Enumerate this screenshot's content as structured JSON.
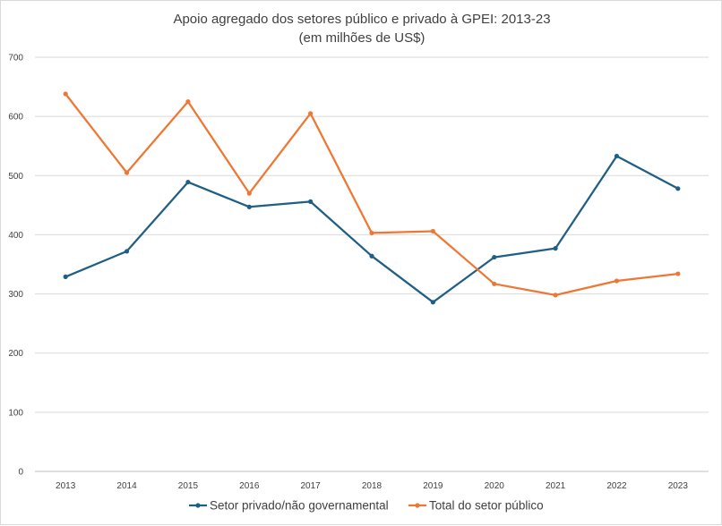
{
  "chart_data": {
    "type": "line",
    "title": "Apoio agregado dos setores público e privado à GPEI: 2013-23",
    "subtitle": "(em milhões de US$)",
    "categories": [
      "2013",
      "2014",
      "2015",
      "2016",
      "2017",
      "2018",
      "2019",
      "2020",
      "2021",
      "2022",
      "2023"
    ],
    "ylim": [
      0,
      700
    ],
    "yticks": [
      0,
      100,
      200,
      300,
      400,
      500,
      600,
      700
    ],
    "grid": true,
    "legend_position": "bottom",
    "series": [
      {
        "name": "Setor privado/não governamental",
        "color": "#1f5f86",
        "values": [
          329,
          372,
          489,
          447,
          456,
          364,
          286,
          362,
          377,
          533,
          478
        ]
      },
      {
        "name": "Total do setor público",
        "color": "#ee7733",
        "values": [
          638,
          505,
          625,
          470,
          605,
          403,
          406,
          317,
          298,
          322,
          334
        ]
      }
    ]
  }
}
